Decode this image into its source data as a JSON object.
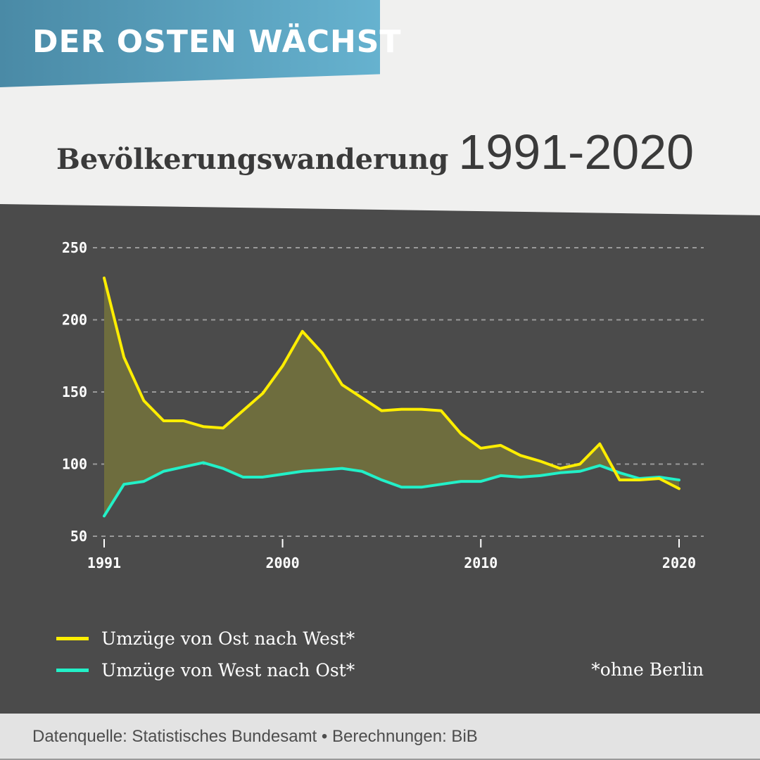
{
  "banner": {
    "text": "DER OSTEN WÄCHST"
  },
  "headline": {
    "main": "Bevölkerungswanderung",
    "years": "1991-2020"
  },
  "chart_data": {
    "type": "line",
    "title": "Bevölkerungswanderung 1991-2020",
    "xlabel": "",
    "ylabel": "",
    "xlim": [
      1991,
      2020
    ],
    "ylim": [
      50,
      250
    ],
    "x_ticks": [
      1991,
      2000,
      2010,
      2020
    ],
    "y_ticks": [
      50,
      100,
      150,
      200,
      250
    ],
    "grid": "horizontal dashed",
    "legend_position": "bottom-left",
    "fill_between_series": true,
    "x": [
      1991,
      1992,
      1993,
      1994,
      1995,
      1996,
      1997,
      1998,
      1999,
      2000,
      2001,
      2002,
      2003,
      2004,
      2005,
      2006,
      2007,
      2008,
      2009,
      2010,
      2011,
      2012,
      2013,
      2014,
      2015,
      2016,
      2017,
      2018,
      2019,
      2020
    ],
    "series": [
      {
        "name": "Umzüge von Ost nach West*",
        "color": "#ffee00",
        "values": [
          229,
          174,
          144,
          130,
          130,
          126,
          125,
          137,
          149,
          168,
          192,
          177,
          155,
          146,
          137,
          138,
          138,
          137,
          121,
          111,
          113,
          106,
          102,
          97,
          100,
          114,
          89,
          89,
          90,
          83
        ]
      },
      {
        "name": "Umzüge von West nach Ost*",
        "color": "#22f0c8",
        "values": [
          64,
          86,
          88,
          95,
          98,
          101,
          97,
          91,
          91,
          93,
          95,
          96,
          97,
          95,
          89,
          84,
          84,
          86,
          88,
          88,
          92,
          91,
          92,
          94,
          95,
          99,
          94,
          90,
          91,
          89
        ]
      }
    ]
  },
  "colors": {
    "banner_start": "#4a8aa6",
    "banner_end": "#66b2cf",
    "panel_background": "#4b4b4b",
    "fill_between": "#6e6d3e",
    "grid": "#9a9a9a"
  },
  "footnote": "*ohne Berlin",
  "footer": {
    "text": "Datenquelle: Statistisches Bundesamt • Berechnungen: BiB"
  }
}
